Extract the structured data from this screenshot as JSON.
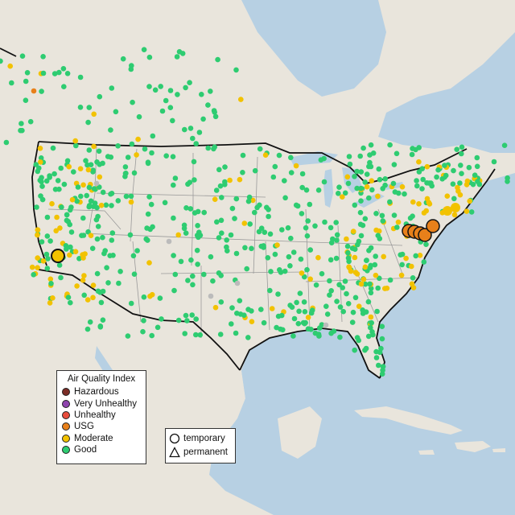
{
  "map": {
    "colors": {
      "ocean": "#b7d0e3",
      "land": "#e9e5dc",
      "border": "#111111",
      "state_line": "#9a9a9a",
      "good": "#2ecc71",
      "moderate": "#f2c200",
      "usg": "#e8801a",
      "unhealthy": "#e74c3c",
      "very_unhealthy": "#8e44ad",
      "hazardous": "#7b2d26"
    }
  },
  "legend": {
    "title": "Air Quality Index",
    "items": [
      {
        "label": "Hazardous",
        "color": "#7b2d26"
      },
      {
        "label": "Very Unhealthy",
        "color": "#8e44ad"
      },
      {
        "label": "Unhealthy",
        "color": "#e74c3c"
      },
      {
        "label": "USG",
        "color": "#e8801a"
      },
      {
        "label": "Moderate",
        "color": "#f2c200"
      },
      {
        "label": "Good",
        "color": "#2ecc71"
      }
    ]
  },
  "type_legend": {
    "temporary": "temporary",
    "permanent": "permanent"
  }
}
